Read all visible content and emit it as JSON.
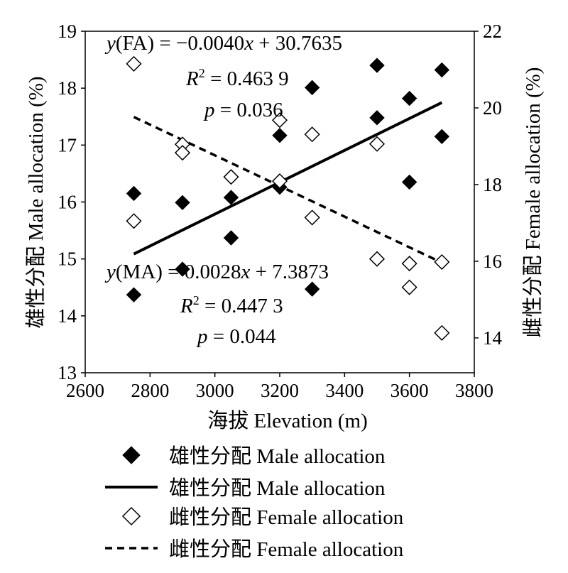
{
  "chart_data": {
    "type": "scatter",
    "xlabel": "海拔 Elevation (m)",
    "ylabel_left": "雄性分配 Male allocation (%)",
    "ylabel_right": "雌性分配 Female allocation (%)",
    "xlim": [
      2600,
      3800
    ],
    "xticks": [
      "2600",
      "2800",
      "3000",
      "3200",
      "3400",
      "3600",
      "3800"
    ],
    "ylim_left": [
      13,
      19
    ],
    "yticks_left": [
      "13",
      "14",
      "15",
      "16",
      "17",
      "18",
      "19"
    ],
    "ylim_right": [
      13.091,
      22
    ],
    "yticks_right": [
      "14",
      "16",
      "18",
      "20",
      "22"
    ],
    "series": [
      {
        "name": "雄性分配  Male allocation",
        "axis": "left",
        "marker": "filled-diamond",
        "points": [
          [
            2750,
            16.15
          ],
          [
            2750,
            14.37
          ],
          [
            2900,
            15.99
          ],
          [
            2900,
            14.82
          ],
          [
            3050,
            16.08
          ],
          [
            3050,
            15.37
          ],
          [
            3200,
            17.17
          ],
          [
            3200,
            16.26
          ],
          [
            3300,
            18.01
          ],
          [
            3300,
            14.47
          ],
          [
            3500,
            18.4
          ],
          [
            3500,
            17.48
          ],
          [
            3600,
            17.82
          ],
          [
            3600,
            16.35
          ],
          [
            3700,
            18.32
          ],
          [
            3700,
            17.15
          ]
        ]
      },
      {
        "name": "雌性分配 Female allocation",
        "axis": "right",
        "marker": "open-diamond",
        "points": [
          [
            2750,
            21.15
          ],
          [
            2750,
            17.05
          ],
          [
            2900,
            19.05
          ],
          [
            2900,
            18.83
          ],
          [
            3050,
            18.2
          ],
          [
            3200,
            19.68
          ],
          [
            3200,
            18.09
          ],
          [
            3300,
            19.31
          ],
          [
            3300,
            17.14
          ],
          [
            3500,
            19.06
          ],
          [
            3500,
            16.06
          ],
          [
            3600,
            15.94
          ],
          [
            3600,
            15.32
          ],
          [
            3700,
            15.98
          ],
          [
            3700,
            14.13
          ]
        ]
      }
    ],
    "fits": [
      {
        "name": "雄性分配  Male allocation",
        "axis": "left",
        "style": "solid",
        "x_range": [
          2750,
          3700
        ],
        "slope": 0.0028,
        "intercept": 7.3873,
        "equation": "y(MA) = 0.0028x + 7.3873",
        "r2": "R² = 0.447 3",
        "p": "p = 0.044"
      },
      {
        "name": "雌性分配 Female allocation",
        "axis": "right",
        "style": "dashed",
        "x_range": [
          2750,
          3700
        ],
        "slope": -0.004,
        "intercept": 30.7635,
        "equation": "y(FA) = −0.0040x + 30.7635",
        "r2": "R² = 0.463 9",
        "p": "p = 0.036"
      }
    ],
    "legend": [
      {
        "marker": "filled-diamond",
        "label": "雄性分配  Male allocation"
      },
      {
        "marker": "solid-line",
        "label": "雄性分配  Male allocation"
      },
      {
        "marker": "open-diamond",
        "label": "雌性分配 Female allocation"
      },
      {
        "marker": "dashed-line",
        "label": "雌性分配 Female allocation"
      }
    ],
    "legend_placement": "bottom",
    "grid": false
  }
}
